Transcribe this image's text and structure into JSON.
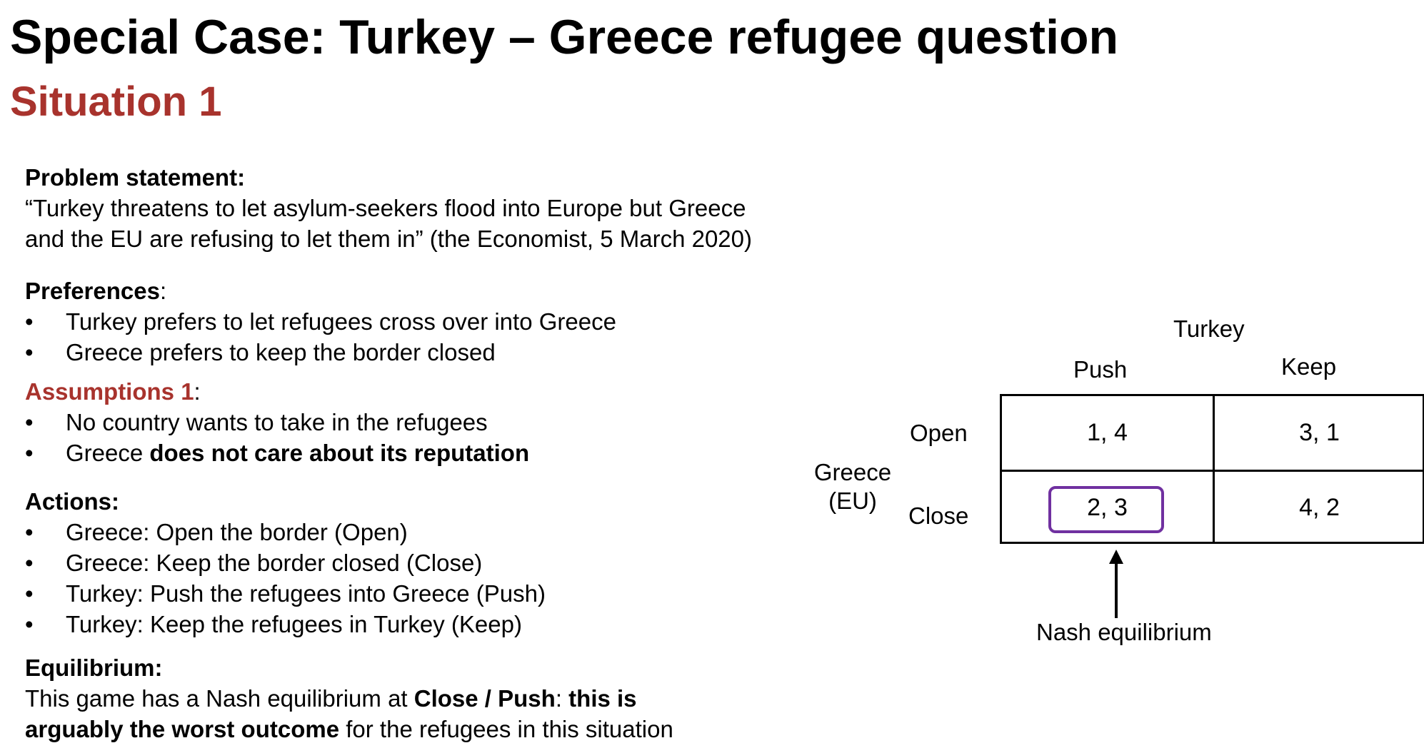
{
  "title": "Special Case: Turkey – Greece refugee question",
  "subtitle": "Situation 1",
  "problem": {
    "heading": "Problem statement:",
    "line1": "“Turkey threatens to let asylum-seekers flood into Europe but Greece",
    "line2": "and the EU are refusing to let them in” (the Economist, 5 March 2020)"
  },
  "preferences": {
    "heading": "Preferences",
    "colon": ":",
    "items": [
      "Turkey prefers to let refugees cross over into Greece",
      "Greece prefers to keep the border closed"
    ]
  },
  "assumptions": {
    "heading": "Assumptions 1",
    "colon": ":",
    "item1": "No country wants to take in the refugees",
    "item2_prefix": "Greece ",
    "item2_bold": "does not care about its reputation"
  },
  "actions": {
    "heading": "Actions:",
    "items": [
      "Greece: Open the border (Open)",
      "Greece: Keep the border closed (Close)",
      "Turkey: Push the refugees into Greece (Push)",
      "Turkey: Keep the refugees in Turkey (Keep)"
    ]
  },
  "equilibrium": {
    "heading": "Equilibrium:",
    "line1_prefix": "This game has a Nash equilibrium at ",
    "line1_bold": "Close / Push",
    "line1_colon": ": ",
    "line1_bold2": "this is",
    "line2_bold": "arguably the worst outcome",
    "line2_rest": " for the refugees in this situation"
  },
  "bullet_char": "•",
  "matrix": {
    "col_player": "Turkey",
    "row_player_line1": "Greece",
    "row_player_line2": "(EU)",
    "col_labels": [
      "Push",
      "Keep"
    ],
    "row_labels": [
      "Open",
      "Close"
    ],
    "payoffs": [
      [
        "1,  4",
        "3,  1"
      ],
      [
        "2,  3",
        "4,  2"
      ]
    ],
    "highlight_color": "#7030a0",
    "annotation": "Nash equilibrium"
  },
  "colors": {
    "accent_red": "#a8332d"
  }
}
